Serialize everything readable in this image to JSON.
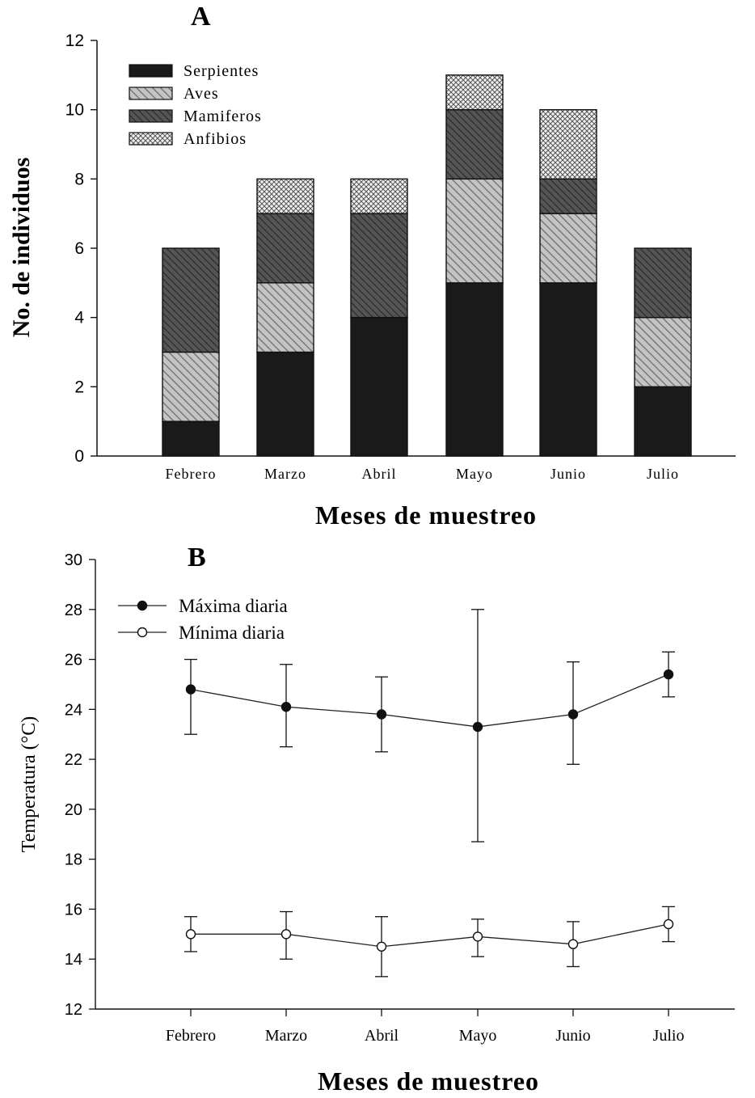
{
  "chart_data": [
    {
      "panel": "A",
      "type": "bar",
      "stacked": true,
      "xlabel": "Meses de muestreo",
      "ylabel": "No. de individuos",
      "ylim": [
        0,
        12
      ],
      "yticks": [
        0,
        2,
        4,
        6,
        8,
        10,
        12
      ],
      "categories": [
        "Febrero",
        "Marzo",
        "Abril",
        "Mayo",
        "Junio",
        "Julio"
      ],
      "legend_position": "top-left",
      "series": [
        {
          "name": "Serpientes",
          "values": [
            1,
            3,
            4,
            5,
            5,
            2
          ],
          "fill": "solid",
          "color": "#1a1a1a"
        },
        {
          "name": "Aves",
          "values": [
            2,
            2,
            0,
            3,
            2,
            2
          ],
          "fill": "hatch-light",
          "color": "#9a9a9a"
        },
        {
          "name": "Mamiferos",
          "values": [
            3,
            2,
            3,
            2,
            1,
            2
          ],
          "fill": "hatch-dark",
          "color": "#4a4a4a"
        },
        {
          "name": "Anfibios",
          "values": [
            0,
            1,
            1,
            1,
            2,
            0
          ],
          "fill": "crosshatch",
          "color": "#ffffff"
        }
      ]
    },
    {
      "panel": "B",
      "type": "line",
      "xlabel": "Meses de muestreo",
      "ylabel": "Temperatura (°C)",
      "ylim": [
        12,
        30
      ],
      "yticks": [
        12,
        14,
        16,
        18,
        20,
        22,
        24,
        26,
        28,
        30
      ],
      "categories": [
        "Febrero",
        "Marzo",
        "Abril",
        "Mayo",
        "Junio",
        "Julio"
      ],
      "legend_position": "top-left",
      "series": [
        {
          "name": "Máxima diaria",
          "marker": "filled-circle",
          "values": [
            24.8,
            24.1,
            23.8,
            23.3,
            23.8,
            25.4
          ],
          "err_high": [
            26.0,
            25.8,
            25.3,
            28.0,
            25.9,
            26.3
          ],
          "err_low": [
            23.0,
            22.5,
            22.3,
            18.7,
            21.8,
            24.5
          ]
        },
        {
          "name": "Mínima diaria",
          "marker": "open-circle",
          "values": [
            15.0,
            15.0,
            14.5,
            14.9,
            14.6,
            15.4
          ],
          "err_high": [
            15.7,
            15.9,
            15.7,
            15.6,
            15.5,
            16.1
          ],
          "err_low": [
            14.3,
            14.0,
            13.3,
            14.1,
            13.7,
            14.7
          ]
        }
      ]
    }
  ],
  "panel_labels": {
    "a": "A",
    "b": "B"
  }
}
